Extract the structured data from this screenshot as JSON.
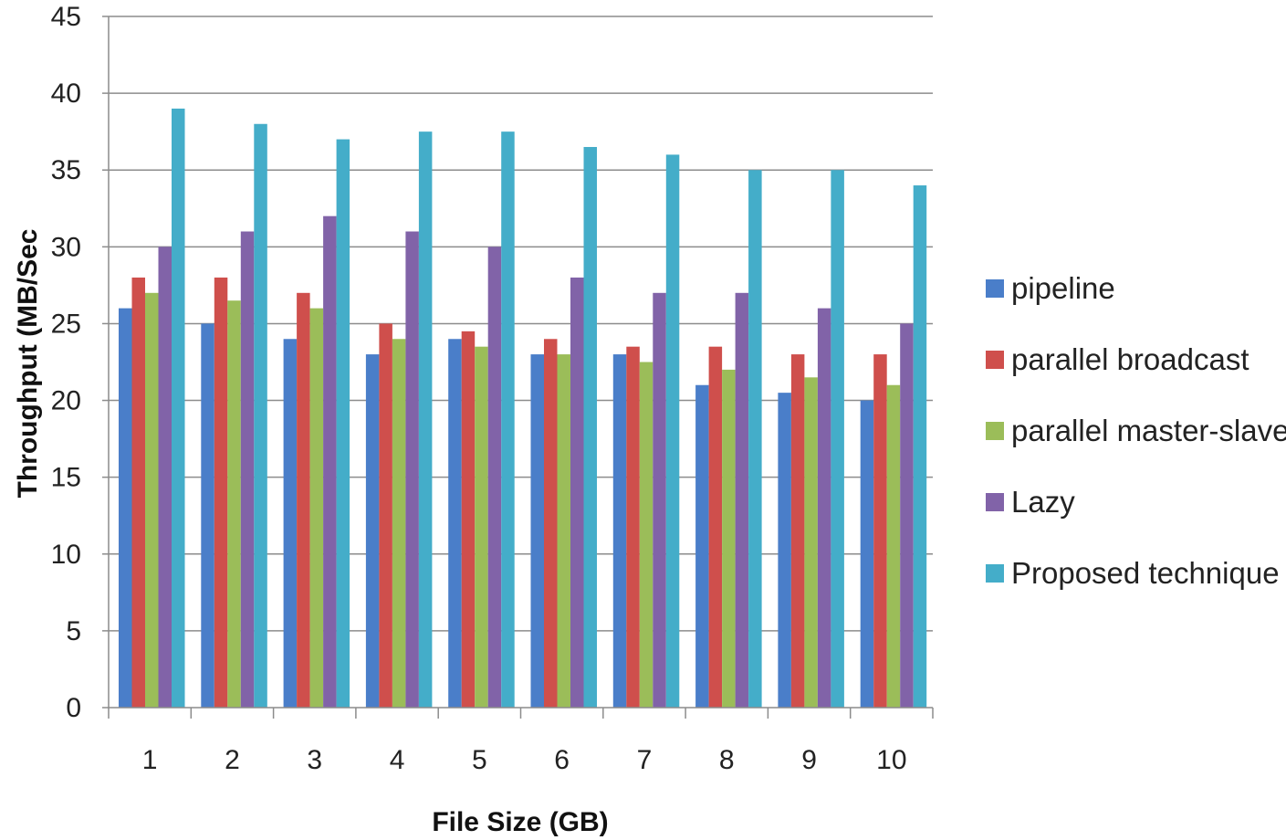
{
  "chart_data": {
    "type": "bar",
    "title": "",
    "xlabel": "File Size (GB)",
    "ylabel": "Throughput  (MB/Sec",
    "ylim": [
      0,
      45
    ],
    "yticks": [
      0,
      5,
      10,
      15,
      20,
      25,
      30,
      35,
      40,
      45
    ],
    "grid": "horizontal",
    "legend_position": "right",
    "categories": [
      "1",
      "2",
      "3",
      "4",
      "5",
      "6",
      "7",
      "8",
      "9",
      "10"
    ],
    "series": [
      {
        "name": "pipeline",
        "color": "#4a7ec9",
        "values": [
          26,
          25,
          24,
          23,
          24,
          23,
          23,
          21,
          20.5,
          20
        ]
      },
      {
        "name": "parallel broadcast",
        "color": "#cf4f4c",
        "values": [
          28,
          28,
          27,
          25,
          24.5,
          24,
          23.5,
          23.5,
          23,
          23
        ]
      },
      {
        "name": "parallel master-slave",
        "color": "#9bbd59",
        "values": [
          27,
          26.5,
          26,
          24,
          23.5,
          23,
          22.5,
          22,
          21.5,
          21
        ]
      },
      {
        "name": "Lazy",
        "color": "#8163a8",
        "values": [
          30,
          31,
          32,
          31,
          30,
          28,
          27,
          27,
          26,
          25
        ]
      },
      {
        "name": "Proposed technique",
        "color": "#44adc9",
        "values": [
          39,
          38,
          37,
          37.5,
          37.5,
          36.5,
          36,
          35,
          35,
          34
        ]
      }
    ]
  }
}
